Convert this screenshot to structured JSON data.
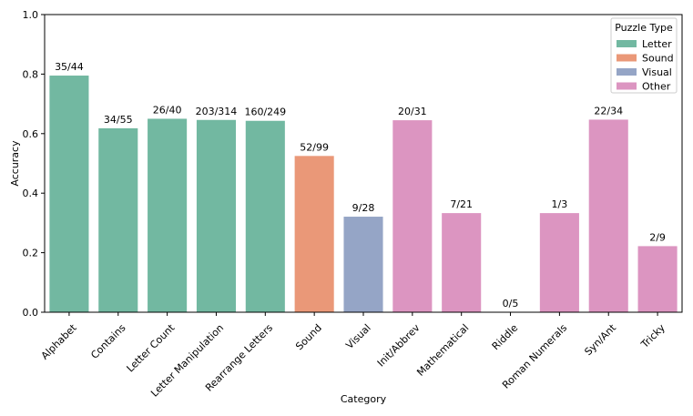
{
  "chart_data": {
    "type": "bar",
    "title": "",
    "xlabel": "Category",
    "ylabel": "Accuracy",
    "ylim": [
      0,
      1.0
    ],
    "yticks": [
      "0.0",
      "0.2",
      "0.4",
      "0.6",
      "0.8",
      "1.0"
    ],
    "grid": false,
    "legend": {
      "title": "Puzzle Type",
      "placement": "top-right",
      "entries": [
        {
          "name": "Letter",
          "color": "#72b8a1"
        },
        {
          "name": "Sound",
          "color": "#ea9878"
        },
        {
          "name": "Visual",
          "color": "#95a5c6"
        },
        {
          "name": "Other",
          "color": "#dc95c1"
        }
      ]
    },
    "categories": [
      "Alphabet",
      "Contains",
      "Letter Count",
      "Letter Manipulation",
      "Rearrange Letters",
      "Sound",
      "Visual",
      "Init/Abbrev",
      "Mathematical",
      "Riddle",
      "Roman Numerals",
      "Syn/Ant",
      "Tricky"
    ],
    "values": [
      0.795,
      0.618,
      0.65,
      0.646,
      0.643,
      0.525,
      0.321,
      0.645,
      0.333,
      0.0,
      0.333,
      0.647,
      0.222
    ],
    "labels": [
      "35/44",
      "34/55",
      "26/40",
      "203/314",
      "160/249",
      "52/99",
      "9/28",
      "20/31",
      "7/21",
      "0/5",
      "1/3",
      "22/34",
      "2/9"
    ],
    "groups": [
      "Letter",
      "Letter",
      "Letter",
      "Letter",
      "Letter",
      "Sound",
      "Visual",
      "Other",
      "Other",
      "Other",
      "Other",
      "Other",
      "Other"
    ]
  }
}
